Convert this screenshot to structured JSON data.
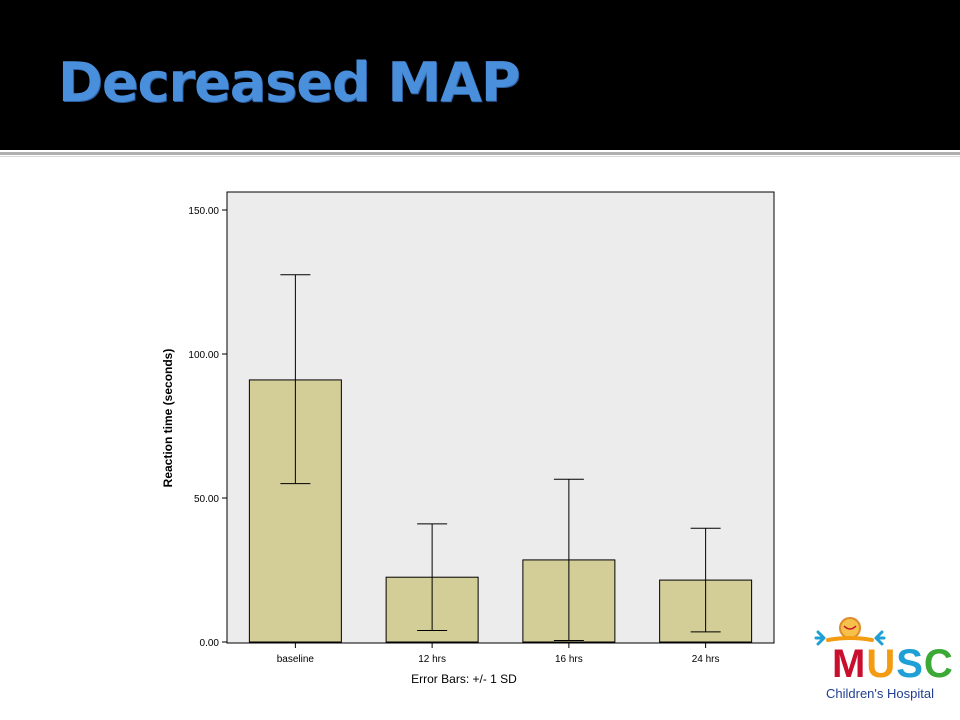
{
  "slide": {
    "title": "Decreased MAP"
  },
  "colors": {
    "title_bar": "#000000",
    "title_text": "#4a8fdb",
    "plot_background": "#ececec",
    "bar_fill": "#d3ce98",
    "bar_stroke": "#000000"
  },
  "logo": {
    "wordmark": [
      "M",
      "U",
      "S",
      "C"
    ],
    "subtitle": "Children's Hospital"
  },
  "chart_data": {
    "type": "bar",
    "categories": [
      "baseline",
      "12 hrs",
      "16 hrs",
      "24 hrs"
    ],
    "values": [
      91,
      22.5,
      28.5,
      21.5
    ],
    "error_low": [
      55,
      4,
      0.5,
      3.5
    ],
    "error_high": [
      127.5,
      41,
      56.5,
      39.5
    ],
    "ylabel": "Reaction time (seconds)",
    "xlabel": "",
    "footnote": "Error Bars: +/- 1 SD",
    "ylim": [
      0,
      150
    ],
    "yticks": [
      0,
      50,
      100,
      150
    ],
    "ytick_labels": [
      "0.00",
      "50.00",
      "100.00",
      "150.00"
    ],
    "grid": false,
    "legend": "none"
  }
}
